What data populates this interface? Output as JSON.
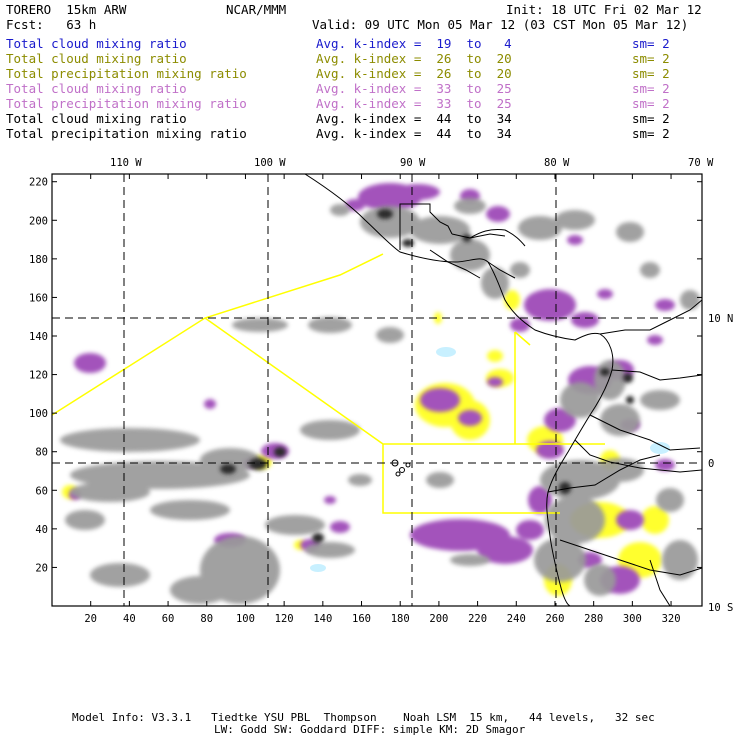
{
  "header": {
    "model": "TORERO  15km ARW",
    "org": "NCAR/MMM",
    "init": "Init: 18 UTC Fri 02 Mar 12",
    "fcst": "Fcst:   63 h",
    "valid": "Valid: 09 UTC Mon 05 Mar 12 (03 CST Mon 05 Mar 12)"
  },
  "legend": [
    {
      "label": "Total cloud mixing ratio",
      "kindex": "Avg. k-index =  19  to   4",
      "sm": "sm= 2",
      "color": "#1a1acc"
    },
    {
      "label": "Total cloud mixing ratio",
      "kindex": "Avg. k-index =  26  to  20",
      "sm": "sm= 2",
      "color": "#8c8c00"
    },
    {
      "label": "Total precipitation mixing ratio",
      "kindex": "Avg. k-index =  26  to  20",
      "sm": "sm= 2",
      "color": "#8c8c00"
    },
    {
      "label": "Total cloud mixing ratio",
      "kindex": "Avg. k-index =  33  to  25",
      "sm": "sm= 2",
      "color": "#c070c8"
    },
    {
      "label": "Total precipitation mixing ratio",
      "kindex": "Avg. k-index =  33  to  25",
      "sm": "sm= 2",
      "color": "#c070c8"
    },
    {
      "label": "Total cloud mixing ratio",
      "kindex": "Avg. k-index =  44  to  34",
      "sm": "sm= 2",
      "color": "#000000"
    },
    {
      "label": "Total precipitation mixing ratio",
      "kindex": "Avg. k-index =  44  to  34",
      "sm": "sm= 2",
      "color": "#000000"
    }
  ],
  "lon_labels": [
    "110 W",
    "100 W",
    "90 W",
    "80 W",
    "70 W"
  ],
  "lat_labels": [
    "10 N",
    "0",
    "10 S"
  ],
  "x_ticks": [
    "20",
    "40",
    "60",
    "80",
    "100",
    "120",
    "140",
    "160",
    "180",
    "200",
    "220",
    "240",
    "260",
    "280",
    "300",
    "320"
  ],
  "y_ticks": [
    "220",
    "200",
    "180",
    "160",
    "140",
    "120",
    "100",
    "80",
    "60",
    "40",
    "20"
  ],
  "colors": {
    "purple": "#a352bb",
    "yellow": "#ffff2e",
    "gray": "#9a9a9a",
    "cyan": "#c8f0ff",
    "border": "#ffff00"
  },
  "footer": {
    "line1": "Model Info: V3.3.1   Tiedtke YSU PBL  Thompson    Noah LSM  15 km,   44 levels,   32 sec",
    "line2": "LW: Godd SW: Goddard DIFF: simple KM: 2D Smagor"
  }
}
